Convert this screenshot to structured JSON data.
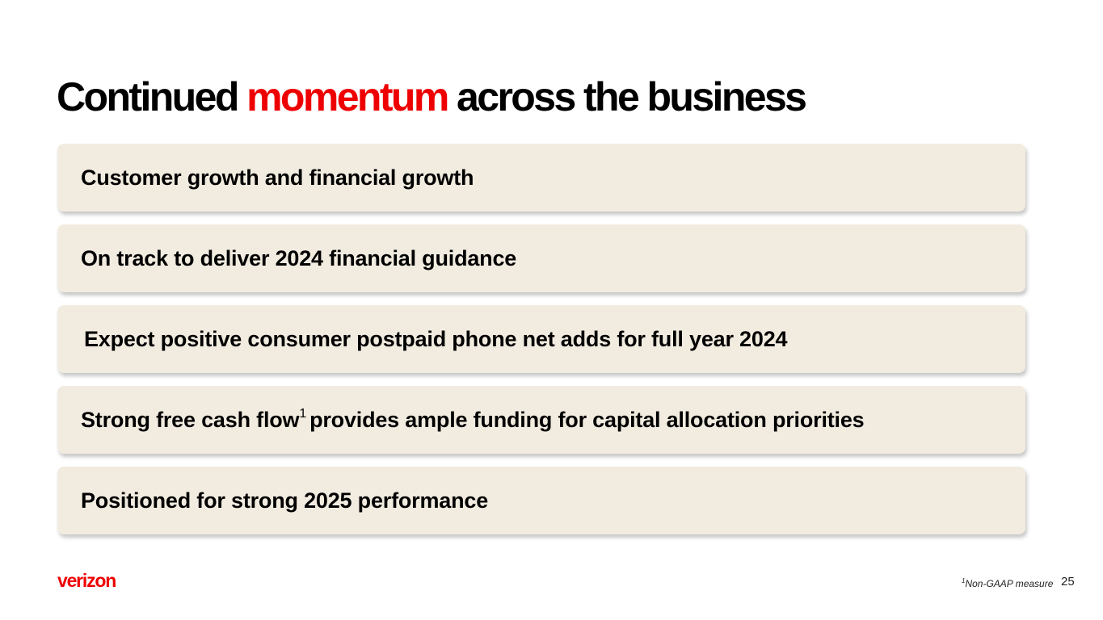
{
  "title": {
    "part1": "Continued ",
    "accent": "momentum",
    "part2": " across the business",
    "accent_color": "#ee0000"
  },
  "items": [
    {
      "text": "Customer growth and financial growth"
    },
    {
      "text": "On track to deliver 2024 financial guidance"
    },
    {
      "text": "Expect positive consumer postpaid phone net adds for full year 2024"
    },
    {
      "text_before": "Strong free cash flow",
      "sup": "1",
      "text_after": "provides ample funding for capital allocation priorities"
    },
    {
      "text": "Positioned for strong 2025 performance"
    }
  ],
  "footer": {
    "logo": "verizon",
    "footnote_mark": "1",
    "footnote": "Non-GAAP measure",
    "page_number": "25"
  },
  "colors": {
    "box_background": "#f2ece0",
    "brand_red": "#ee0000"
  }
}
